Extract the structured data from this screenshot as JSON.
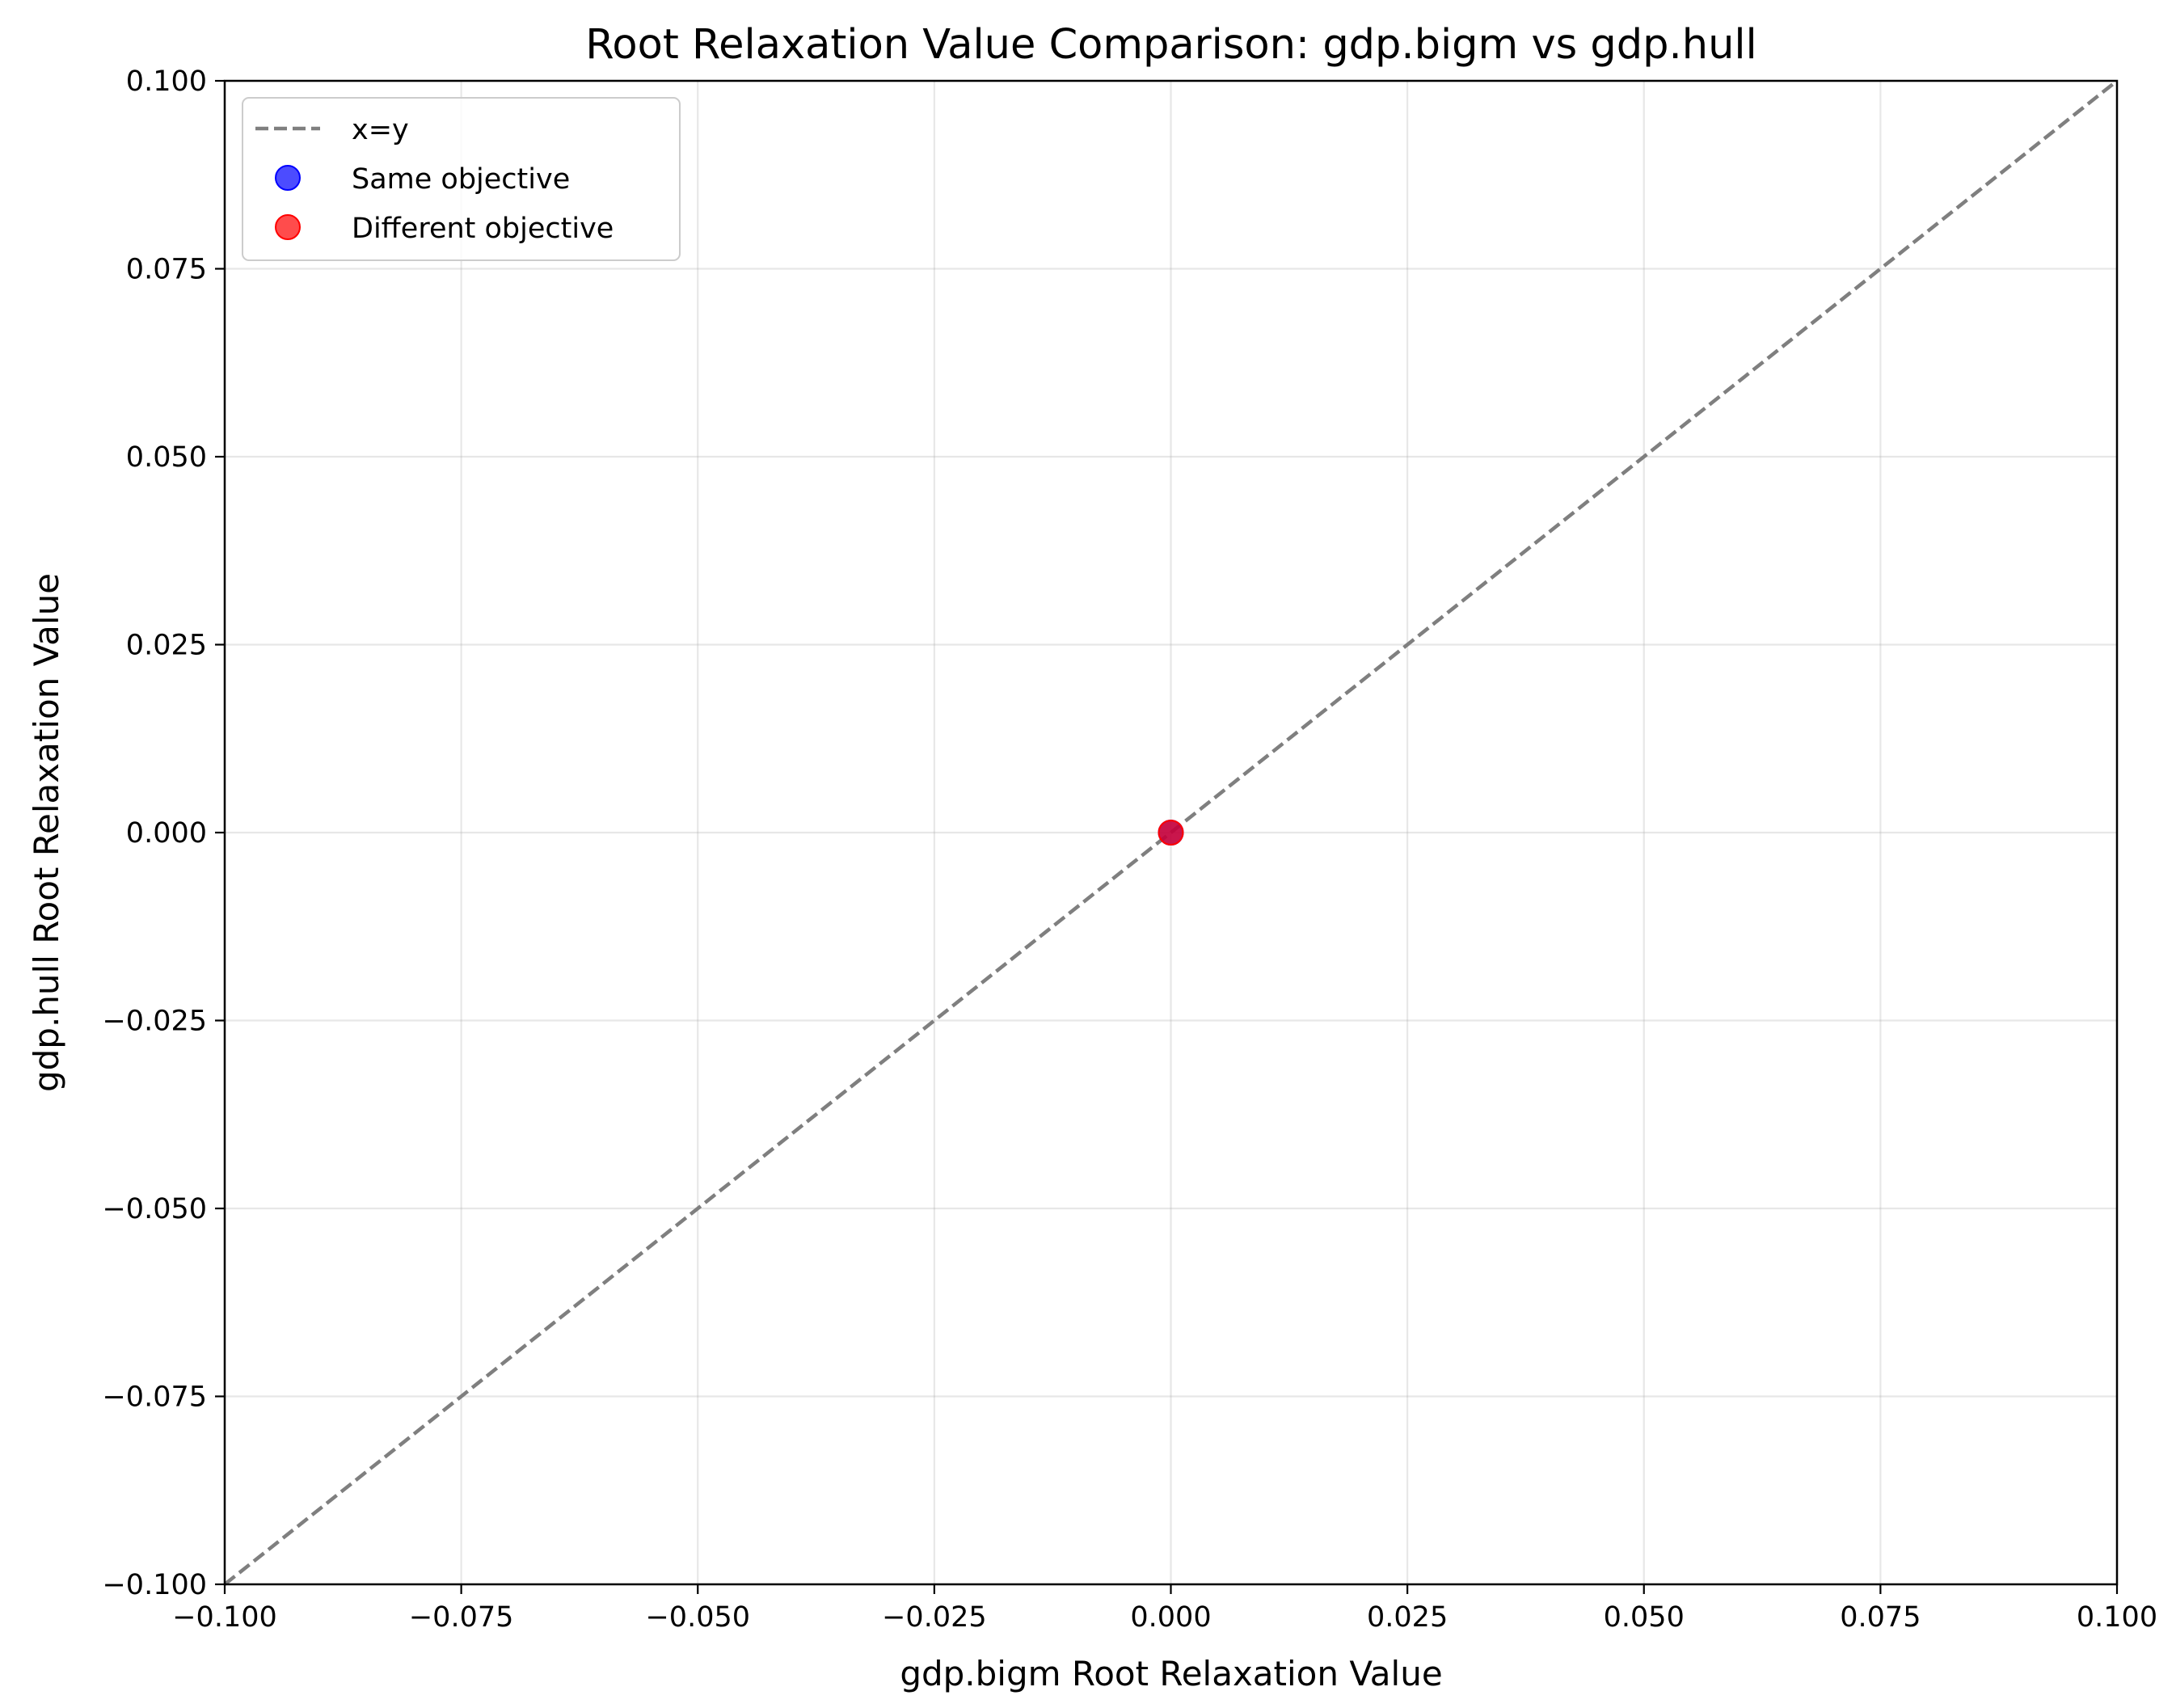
{
  "chart_data": {
    "type": "scatter",
    "title": "Root Relaxation Value Comparison: gdp.bigm vs gdp.hull",
    "xlabel": "gdp.bigm Root Relaxation Value",
    "ylabel": "gdp.hull Root Relaxation Value",
    "xlim": [
      -0.1,
      0.1
    ],
    "ylim": [
      -0.1,
      0.1
    ],
    "xticks": [
      -0.1,
      -0.075,
      -0.05,
      -0.025,
      0.0,
      0.025,
      0.05,
      0.075,
      0.1
    ],
    "yticks": [
      -0.1,
      -0.075,
      -0.05,
      -0.025,
      0.0,
      0.025,
      0.05,
      0.075,
      0.1
    ],
    "xtick_labels": [
      "−0.100",
      "−0.075",
      "−0.050",
      "−0.025",
      "0.000",
      "0.025",
      "0.050",
      "0.075",
      "0.100"
    ],
    "ytick_labels": [
      "−0.100",
      "−0.075",
      "−0.050",
      "−0.025",
      "0.000",
      "0.025",
      "0.050",
      "0.075",
      "0.100"
    ],
    "grid": true,
    "legend_position": "top-left",
    "reference_line": {
      "name": "x=y",
      "color": "#7f7f7f",
      "style": "dashed"
    },
    "series": [
      {
        "name": "Same objective",
        "color": "#0000ff",
        "points": [
          [
            0.0,
            0.0
          ]
        ]
      },
      {
        "name": "Different objective",
        "color": "#ff0000",
        "points": [
          [
            0.0,
            0.0
          ]
        ]
      }
    ]
  }
}
